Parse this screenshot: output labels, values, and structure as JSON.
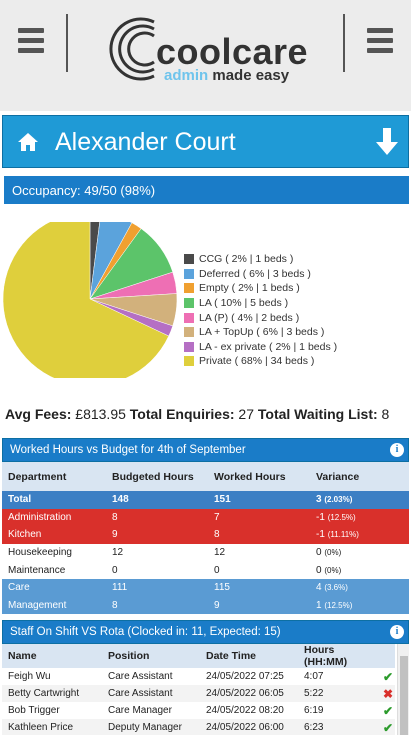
{
  "header": {
    "logo_word": "coolcare",
    "logo_tag_1": "admin",
    "logo_tag_2": "made easy",
    "left_menu_icon": "hamburger-icon",
    "right_menu_icon": "hamburger-icon"
  },
  "home": {
    "title": "Alexander Court",
    "home_icon": "home-icon",
    "action_icon": "arrow-down-icon"
  },
  "occupancy": {
    "label": "Occupancy: 49/50 (98%)"
  },
  "chart_data": {
    "type": "pie",
    "slices": [
      {
        "label": "CCG ( 2% | 1 beds )",
        "percent": 2,
        "beds": 1,
        "color": "#4a4a4a"
      },
      {
        "label": "Deferred ( 6% | 3 beds )",
        "percent": 6,
        "beds": 3,
        "color": "#5ba3dc"
      },
      {
        "label": "Empty ( 2% | 1 beds )",
        "percent": 2,
        "beds": 1,
        "color": "#f0a030"
      },
      {
        "label": "LA ( 10% | 5 beds )",
        "percent": 10,
        "beds": 5,
        "color": "#5cc46a"
      },
      {
        "label": "LA (P) ( 4% | 2 beds )",
        "percent": 4,
        "beds": 2,
        "color": "#ee6fb4"
      },
      {
        "label": "LA + TopUp ( 6% | 3 beds )",
        "percent": 6,
        "beds": 3,
        "color": "#d2b17c"
      },
      {
        "label": "LA - ex private ( 2% | 1 beds )",
        "percent": 2,
        "beds": 1,
        "color": "#b56fc4"
      },
      {
        "label": "Private ( 68% | 34 beds )",
        "percent": 68,
        "beds": 34,
        "color": "#dfcf3c"
      }
    ]
  },
  "fees": {
    "avg_label": "Avg Fees:",
    "avg_value": "£813.95",
    "enq_label": "Total Enquiries:",
    "enq_value": "27",
    "wait_label": "Total Waiting List:",
    "wait_value": "8"
  },
  "hours_panel": {
    "title": "Worked Hours vs Budget for 4th of September",
    "info_icon": "info-icon",
    "headers": [
      "Department",
      "Budgeted Hours",
      "Worked Hours",
      "Variance"
    ],
    "rows": [
      {
        "dept": "Total",
        "budget": "148",
        "worked": "151",
        "variance": "3",
        "pct": "(2.03%)",
        "style": "total"
      },
      {
        "dept": "Administration",
        "budget": "8",
        "worked": "7",
        "variance": "-1",
        "pct": "(12.5%)",
        "style": "red"
      },
      {
        "dept": "Kitchen",
        "budget": "9",
        "worked": "8",
        "variance": "-1",
        "pct": "(11.11%)",
        "style": "red"
      },
      {
        "dept": "Housekeeping",
        "budget": "12",
        "worked": "12",
        "variance": "0",
        "pct": "(0%)",
        "style": "white"
      },
      {
        "dept": "Maintenance",
        "budget": "0",
        "worked": "0",
        "variance": "0",
        "pct": "(0%)",
        "style": "white"
      },
      {
        "dept": "Care",
        "budget": "111",
        "worked": "115",
        "variance": "4",
        "pct": "(3.6%)",
        "style": "blue"
      },
      {
        "dept": "Management",
        "budget": "8",
        "worked": "9",
        "variance": "1",
        "pct": "(12.5%)",
        "style": "blue"
      }
    ]
  },
  "staff_panel": {
    "title": "Staff On Shift VS Rota (Clocked in: 11, Expected: 15)",
    "info_icon": "info-icon",
    "headers": [
      "Name",
      "Position",
      "Date Time",
      "Hours (HH:MM)"
    ],
    "rows": [
      {
        "name": "Feigh Wu",
        "position": "Care Assistant",
        "datetime": "24/05/2022 07:25",
        "hours": "4:07",
        "status": "tick"
      },
      {
        "name": "Betty Cartwright",
        "position": "Care Assistant",
        "datetime": "24/05/2022 06:05",
        "hours": "5:22",
        "status": "cross"
      },
      {
        "name": "Bob Trigger",
        "position": "Care Manager",
        "datetime": "24/05/2022 08:20",
        "hours": "6:19",
        "status": "tick"
      },
      {
        "name": "Kathleen Price",
        "position": "Deputy Manager",
        "datetime": "24/05/2022 06:00",
        "hours": "6:23",
        "status": "tick"
      }
    ]
  }
}
